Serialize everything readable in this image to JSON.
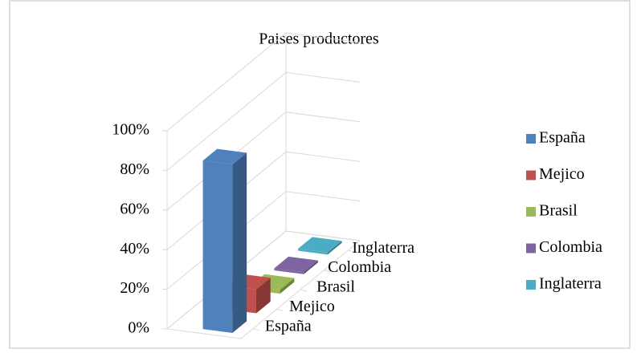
{
  "chart_data": {
    "type": "bar",
    "title": "Paises productores",
    "categories": [
      null
    ],
    "series": [
      {
        "name": "España",
        "color": "#4f81bd",
        "values": [
          85
        ]
      },
      {
        "name": "Mejico",
        "color": "#c0504d",
        "values": [
          12
        ]
      },
      {
        "name": "Brasil",
        "color": "#9bbb59",
        "values": [
          2
        ]
      },
      {
        "name": "Colombia",
        "color": "#8064a2",
        "values": [
          1
        ]
      },
      {
        "name": "Inglaterra",
        "color": "#4bacc6",
        "values": [
          1
        ]
      }
    ],
    "ylim": [
      0,
      100
    ],
    "yticks": [
      {
        "value": 0,
        "label": "0%"
      },
      {
        "value": 20,
        "label": "20%"
      },
      {
        "value": 40,
        "label": "40%"
      },
      {
        "value": 60,
        "label": "60%"
      },
      {
        "value": 80,
        "label": "80%"
      },
      {
        "value": 100,
        "label": "100%"
      }
    ],
    "grid": true,
    "legend": "right"
  }
}
